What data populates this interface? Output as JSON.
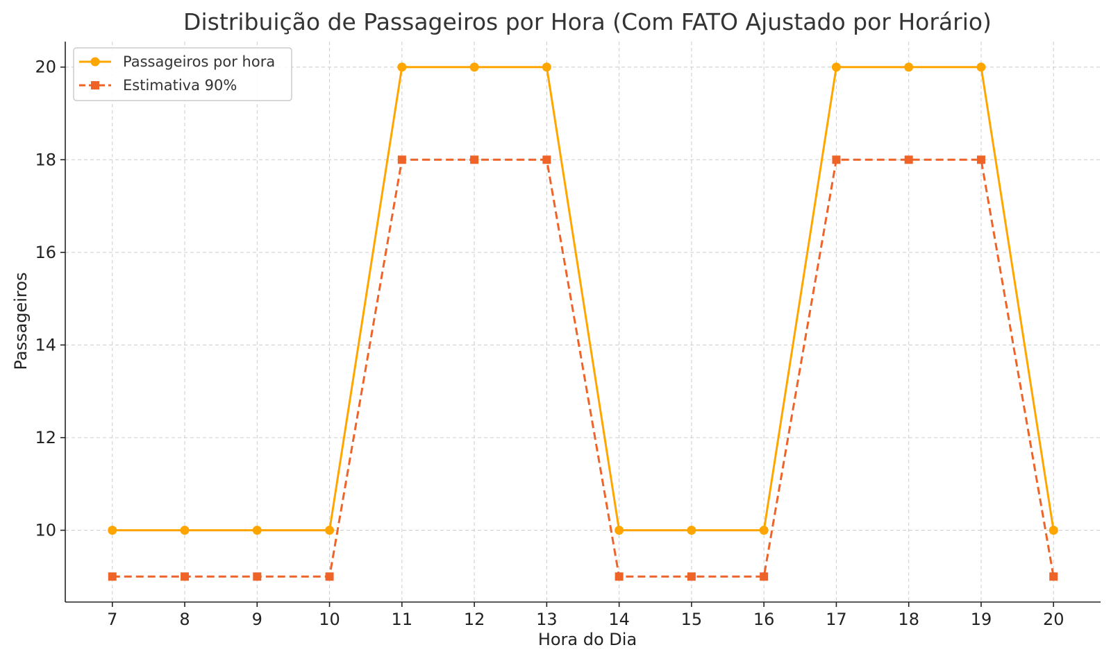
{
  "chart_data": {
    "type": "line",
    "title": "Distribuição de Passageiros por Hora (Com FATO Ajustado por Horário)",
    "xlabel": "Hora do Dia",
    "ylabel": "Passageiros",
    "x": [
      7,
      8,
      9,
      10,
      11,
      12,
      13,
      14,
      15,
      16,
      17,
      18,
      19,
      20
    ],
    "xlim": [
      6.35,
      20.65
    ],
    "ylim": [
      8.45,
      20.55
    ],
    "yticks": [
      10,
      12,
      14,
      16,
      18,
      20
    ],
    "grid": true,
    "legend_position": "top-left",
    "series": [
      {
        "name": "Passageiros por hora",
        "color": "#FFA500",
        "line_style": "solid",
        "marker": "circle",
        "values": [
          10,
          10,
          10,
          10,
          20,
          20,
          20,
          10,
          10,
          10,
          20,
          20,
          20,
          10
        ]
      },
      {
        "name": "Estimativa 90%",
        "color": "#EE6428",
        "line_style": "dashed",
        "marker": "square",
        "values": [
          9,
          9,
          9,
          9,
          18,
          18,
          18,
          9,
          9,
          9,
          18,
          18,
          18,
          9
        ]
      }
    ]
  }
}
